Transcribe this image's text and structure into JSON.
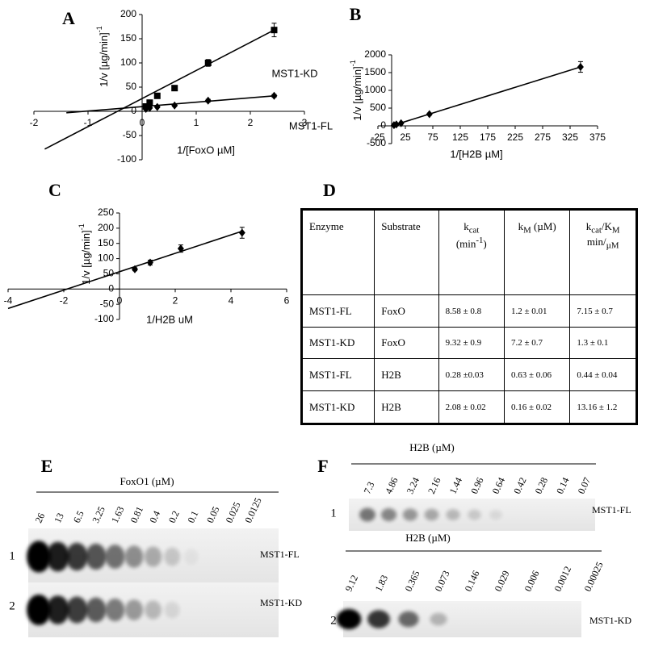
{
  "chart_data": [
    {
      "type": "scatter",
      "label": "A",
      "ylabel": "1/v [µg/min]",
      "ylabel_exp": "-1",
      "xlabel": "1/[FoxO µM]",
      "xlim": [
        -2,
        3
      ],
      "ylim": [
        -100,
        200
      ],
      "xticks": [
        -2,
        -1,
        0,
        1,
        2,
        3
      ],
      "yticks": [
        -100,
        -50,
        0,
        50,
        100,
        150,
        200
      ],
      "series": [
        {
          "name": "MST1-KD",
          "marker": "square",
          "color": "#000000",
          "x": [
            0.07,
            0.14,
            0.28,
            0.6,
            1.22,
            2.44
          ],
          "values": [
            10,
            18,
            32,
            48,
            100,
            168
          ],
          "errors": [
            2,
            3,
            3,
            4,
            7,
            14
          ],
          "fit": {
            "x": [
              -1.8,
              2.44
            ],
            "values": [
              -78,
              168
            ]
          }
        },
        {
          "name": "MST1-FL",
          "marker": "diamond",
          "color": "#000000",
          "x": [
            0.07,
            0.14,
            0.28,
            0.6,
            1.22,
            2.44
          ],
          "values": [
            5,
            7,
            9,
            12,
            22,
            32
          ],
          "errors": [
            1,
            1,
            1,
            2,
            3,
            3
          ],
          "fit": {
            "x": [
              -1.4,
              2.44
            ],
            "values": [
              -3,
              32
            ]
          }
        }
      ]
    },
    {
      "type": "scatter",
      "label": "B",
      "ylabel": "1/v [µg/min]",
      "ylabel_exp": "-1",
      "xlabel": "1/[H2B µM]",
      "xlim": [
        -25,
        375
      ],
      "ylim": [
        -500,
        2000
      ],
      "xticks": [
        -25,
        25,
        75,
        125,
        175,
        225,
        275,
        325,
        375
      ],
      "yticks": [
        -500,
        0,
        500,
        1000,
        1500,
        2000
      ],
      "series": [
        {
          "marker": "diamond",
          "color": "#000000",
          "x": [
            4.3,
            8.6,
            17.2,
            68.8,
            344
          ],
          "values": [
            20,
            40,
            75,
            330,
            1660
          ],
          "errors": [
            10,
            10,
            15,
            30,
            150
          ],
          "fit": {
            "x": [
              0,
              344
            ],
            "values": [
              0,
              1660
            ]
          }
        }
      ]
    },
    {
      "type": "scatter",
      "label": "C",
      "ylabel": "1/v [µg/min]",
      "ylabel_exp": "-1",
      "xlabel": "1/H2B uM",
      "xlim": [
        -4,
        6
      ],
      "ylim": [
        -100,
        250
      ],
      "xticks": [
        -4,
        -2,
        0,
        2,
        4,
        6
      ],
      "yticks": [
        -100,
        -50,
        0,
        50,
        100,
        150,
        200,
        250
      ],
      "series": [
        {
          "marker": "diamond",
          "color": "#000000",
          "x": [
            0.55,
            1.1,
            2.2,
            4.4
          ],
          "values": [
            65,
            87,
            133,
            185
          ],
          "errors": [
            5,
            8,
            12,
            18
          ],
          "fit": {
            "x": [
              -4,
              4.4
            ],
            "values": [
              -64,
              190
            ]
          }
        }
      ]
    }
  ],
  "table": {
    "label": "D",
    "header": [
      "Enzyme",
      "Substrate",
      [
        "k",
        "cat",
        "(min",
        "-1",
        ")"
      ],
      [
        "k",
        "M",
        "(µM)"
      ],
      [
        "k",
        "cat",
        "/K",
        "M",
        "min/",
        "µM"
      ]
    ],
    "rows": [
      [
        "MST1-FL",
        "FoxO",
        "8.58 ± 0.8",
        "1.2 ± 0.01",
        "7.15 ± 0.7"
      ],
      [
        "MST1-KD",
        "FoxO",
        "9.32 ± 0.9",
        "7.2 ± 0.7",
        "1.3 ± 0.1"
      ],
      [
        "MST1-FL",
        "H2B",
        "0.28 ±0.03",
        "0.63 ± 0.06",
        "0.44 ± 0.04"
      ],
      [
        "MST1-KD",
        "H2B",
        "2.08 ± 0.02",
        "0.16 ± 0.02",
        "13.16 ± 1.2"
      ]
    ]
  },
  "gels": [
    {
      "label": "E",
      "blots": [
        {
          "title": "FoxO1 (µM)",
          "lanes": [
            "26",
            "13",
            "6.5",
            "3.25",
            "1.63",
            "0.81",
            "0.4",
            "0.2",
            "0.1",
            "0.05",
            "0.025",
            "0.0125"
          ],
          "number": "1",
          "name": "MST1-FL"
        },
        {
          "number": "2",
          "name": "MST1-KD"
        }
      ]
    },
    {
      "label": "F",
      "blots": [
        {
          "title": "H2B (µM)",
          "lanes": [
            "7.3",
            "4.86",
            "3.24",
            "2.16",
            "1.44",
            "0.96",
            "0.64",
            "0.42",
            "0.28",
            "0.14",
            "0.07"
          ],
          "number": "1",
          "name": "MST1-FL"
        },
        {
          "title": "H2B (µM)",
          "lanes": [
            "9.12",
            "1.83",
            "0.365",
            "0.073",
            "0.146",
            "0.029",
            "0.006",
            "0.0012",
            "0.00025"
          ],
          "number": "2",
          "name": "MST1-KD"
        }
      ]
    }
  ]
}
